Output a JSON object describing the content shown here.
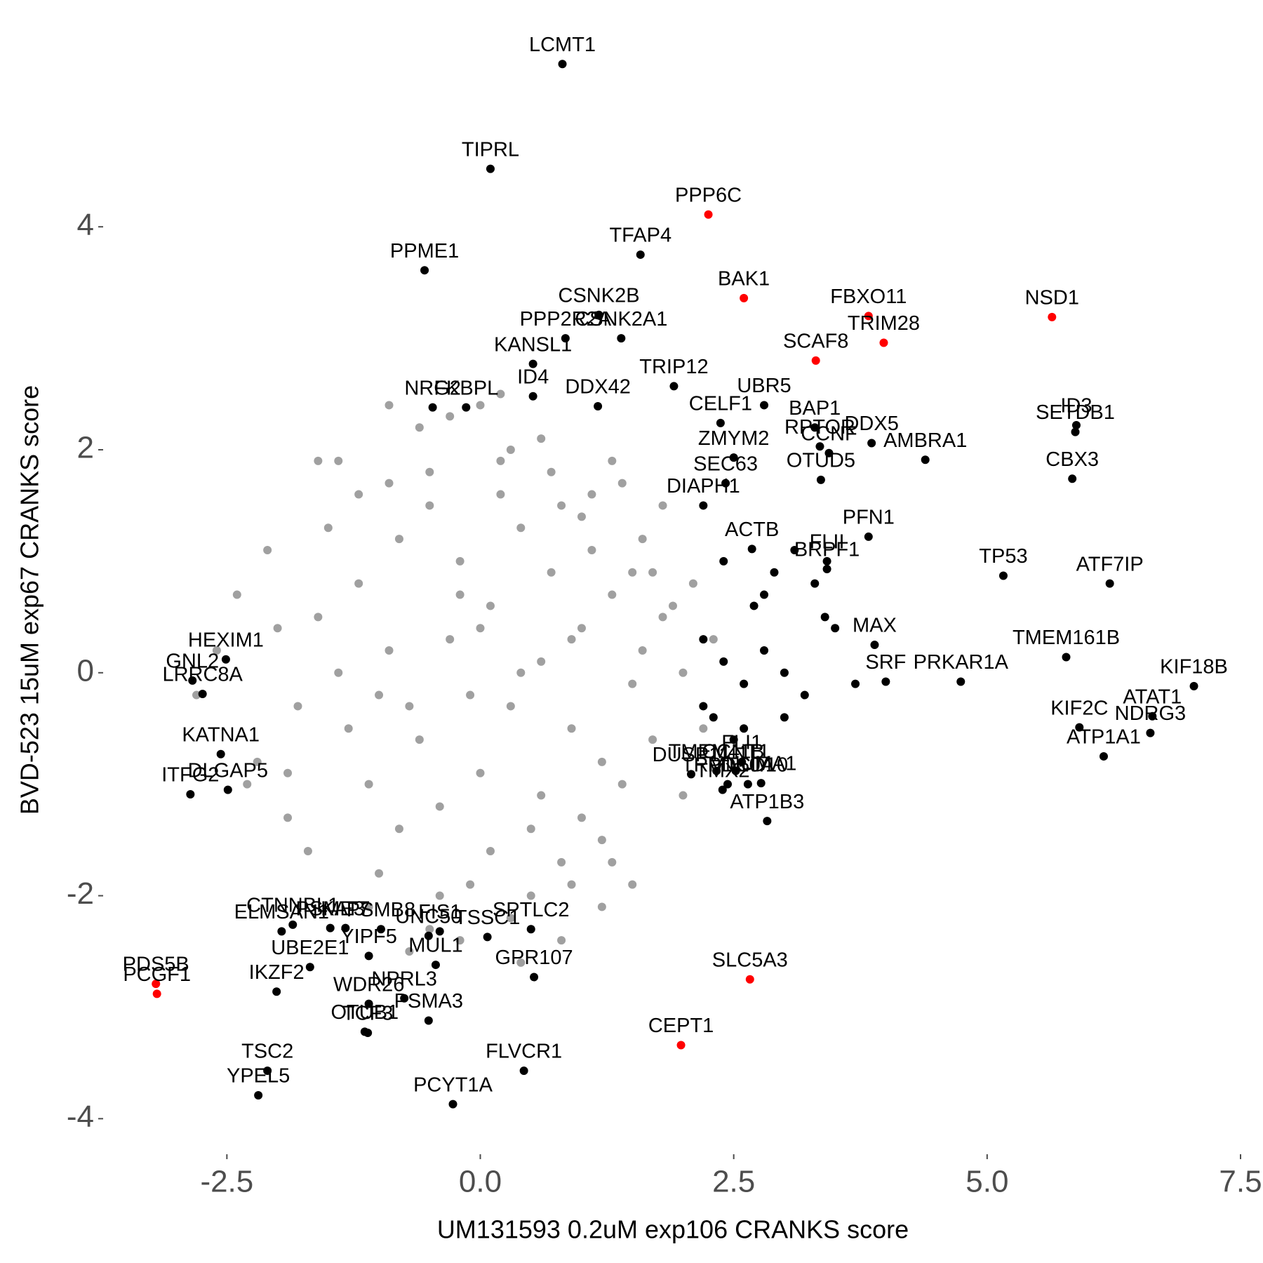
{
  "chart_data": {
    "type": "scatter",
    "xlabel": "UM131593 0.2uM exp106 CRANKS score",
    "ylabel": "BVD-523 15uM exp67 CRANKS score",
    "xlim": [
      -3.7,
      7.5
    ],
    "ylim": [
      -4.3,
      5.6
    ],
    "xticks": [
      -2.5,
      {
        "value": 0,
        "label": "0.0"
      },
      2.5,
      {
        "value": 5,
        "label": "5.0"
      },
      7.5
    ],
    "yticks": [
      -4,
      -2,
      0,
      2,
      4
    ],
    "series": [
      {
        "color": "#a0a0a0",
        "x": [
          -1.2,
          -0.8,
          -0.5,
          -0.2,
          0.1,
          0.4,
          0.7,
          1.0,
          1.3,
          1.6,
          -1.0,
          -0.6,
          -0.3,
          0.0,
          0.3,
          0.6,
          0.9,
          1.2,
          1.5,
          1.8,
          -1.4,
          -0.9,
          -0.4,
          0.2,
          0.5,
          0.8,
          1.1,
          1.4,
          -0.7,
          0.0,
          -1.1,
          -0.5,
          0.1,
          0.6,
          1.0,
          1.5,
          -0.2,
          0.4,
          0.9,
          -0.8,
          -1.6,
          -1.3,
          -0.9,
          -0.1,
          0.3,
          0.8,
          1.2,
          1.7,
          2.0,
          2.1,
          -1.8,
          -2.0,
          -2.2,
          -2.4,
          -1.9,
          -1.5,
          -1.0,
          -0.4,
          0.2,
          0.7,
          1.1,
          1.6,
          2.0,
          -0.6,
          -0.1,
          0.5,
          1.3,
          -1.2,
          -0.3,
          0.9,
          -2.1,
          -1.7,
          -2.6,
          -2.3,
          1.9,
          2.2,
          1.4,
          -0.5,
          0.6,
          1.0,
          -1.4,
          0.3,
          -0.9,
          1.7,
          -2.8,
          2.3,
          0.2,
          -1.6,
          1.2,
          -0.2,
          0.5,
          1.8,
          -1.1,
          0.0,
          -0.7,
          0.8,
          1.5,
          -1.9,
          0.4,
          1.3
        ],
        "y": [
          0.8,
          1.2,
          1.5,
          1.0,
          0.6,
          1.3,
          0.9,
          0.4,
          0.7,
          0.2,
          -0.2,
          -0.6,
          0.3,
          -0.9,
          -0.3,
          0.1,
          -0.5,
          -0.8,
          -0.1,
          0.5,
          0.0,
          0.2,
          -1.2,
          1.6,
          -1.4,
          1.5,
          1.1,
          -1.0,
          -0.3,
          0.4,
          -1.0,
          1.8,
          -1.6,
          -1.1,
          -1.3,
          0.9,
          0.7,
          0.0,
          0.3,
          -1.4,
          0.5,
          -0.5,
          1.7,
          -0.2,
          2.0,
          -1.7,
          -1.5,
          -0.6,
          0.0,
          0.8,
          -0.3,
          0.4,
          -0.8,
          0.7,
          -1.3,
          1.3,
          -1.8,
          -2.0,
          1.9,
          1.8,
          1.6,
          1.2,
          -1.1,
          2.2,
          -1.9,
          -2.0,
          -1.7,
          1.6,
          2.3,
          -1.9,
          1.1,
          -1.6,
          0.2,
          -1.0,
          0.6,
          -0.5,
          1.7,
          -2.3,
          2.1,
          1.4,
          1.9,
          -2.2,
          2.4,
          0.9,
          -0.2,
          0.3,
          2.5,
          1.9,
          -2.1,
          -2.4,
          -2.3,
          1.5,
          -2.1,
          2.4,
          -2.5,
          -2.4,
          -1.9,
          -0.9,
          -2.6,
          1.9
        ]
      },
      {
        "color": "#000000",
        "x": [
          2.2,
          2.4,
          2.6,
          2.8,
          3.0,
          3.2,
          3.4,
          2.3,
          2.5,
          2.7,
          2.9,
          3.1,
          3.5,
          3.7,
          2.2,
          2.6,
          3.0,
          3.3,
          2.4,
          2.8
        ],
        "y": [
          0.3,
          0.1,
          -0.1,
          0.2,
          0.0,
          -0.2,
          0.5,
          -0.4,
          -0.6,
          0.6,
          0.9,
          1.1,
          0.4,
          -0.1,
          -0.3,
          -0.5,
          -0.4,
          0.8,
          1.0,
          0.7
        ]
      }
    ],
    "points": [
      {
        "label": "LCMT1",
        "x": 0.81,
        "y": 5.46,
        "color": "#000000"
      },
      {
        "label": "TIPRL",
        "x": 0.1,
        "y": 4.52,
        "color": "#000000"
      },
      {
        "label": "PPP6C",
        "x": 2.25,
        "y": 4.11,
        "color": "#ff0000"
      },
      {
        "label": "TFAP4",
        "x": 1.58,
        "y": 3.75,
        "color": "#000000"
      },
      {
        "label": "PPME1",
        "x": -0.55,
        "y": 3.61,
        "color": "#000000"
      },
      {
        "label": "BAK1",
        "x": 2.6,
        "y": 3.36,
        "color": "#ff0000"
      },
      {
        "label": "CSNK2B",
        "x": 1.17,
        "y": 3.21,
        "color": "#000000"
      },
      {
        "label": "FBXO11",
        "x": 3.83,
        "y": 3.2,
        "color": "#ff0000"
      },
      {
        "label": "NSD1",
        "x": 5.64,
        "y": 3.19,
        "color": "#ff0000"
      },
      {
        "label": "PPP2R2A",
        "x": 0.84,
        "y": 3.0,
        "color": "#000000"
      },
      {
        "label": "CSNK2A1",
        "x": 1.39,
        "y": 3.0,
        "color": "#000000"
      },
      {
        "label": "TRIM28",
        "x": 3.98,
        "y": 2.96,
        "color": "#ff0000"
      },
      {
        "label": "SCAF8",
        "x": 3.31,
        "y": 2.8,
        "color": "#ff0000"
      },
      {
        "label": "KANSL1",
        "x": 0.52,
        "y": 2.77,
        "color": "#000000"
      },
      {
        "label": "TRIP12",
        "x": 1.91,
        "y": 2.57,
        "color": "#000000"
      },
      {
        "label": "ID4",
        "x": 0.52,
        "y": 2.48,
        "color": "#000000"
      },
      {
        "label": "UBR5",
        "x": 2.8,
        "y": 2.4,
        "color": "#000000"
      },
      {
        "label": "NRG2",
        "x": -0.47,
        "y": 2.38,
        "color": "#000000"
      },
      {
        "label": "FKBPL",
        "x": -0.14,
        "y": 2.38,
        "color": "#000000"
      },
      {
        "label": "DDX42",
        "x": 1.16,
        "y": 2.39,
        "color": "#000000"
      },
      {
        "label": "CELF1",
        "x": 2.37,
        "y": 2.24,
        "color": "#000000"
      },
      {
        "label": "BAP1",
        "x": 3.3,
        "y": 2.2,
        "color": "#000000"
      },
      {
        "label": "ID3",
        "x": 5.88,
        "y": 2.22,
        "color": "#000000"
      },
      {
        "label": "SETDB1",
        "x": 5.87,
        "y": 2.16,
        "color": "#000000"
      },
      {
        "label": "DDX5",
        "x": 3.86,
        "y": 2.06,
        "color": "#000000"
      },
      {
        "label": "RPTOR",
        "x": 3.35,
        "y": 2.03,
        "color": "#000000"
      },
      {
        "label": "CCNF",
        "x": 3.44,
        "y": 1.97,
        "color": "#000000"
      },
      {
        "label": "AMBRA1",
        "x": 4.39,
        "y": 1.91,
        "color": "#000000"
      },
      {
        "label": "ZMYM2",
        "x": 2.5,
        "y": 1.93,
        "color": "#000000"
      },
      {
        "label": "CBX3",
        "x": 5.84,
        "y": 1.74,
        "color": "#000000"
      },
      {
        "label": "OTUD5",
        "x": 3.36,
        "y": 1.73,
        "color": "#000000"
      },
      {
        "label": "SEC63",
        "x": 2.42,
        "y": 1.7,
        "color": "#000000"
      },
      {
        "label": "DIAPH1",
        "x": 2.2,
        "y": 1.5,
        "color": "#000000"
      },
      {
        "label": "PFN1",
        "x": 3.83,
        "y": 1.22,
        "color": "#000000"
      },
      {
        "label": "ACTB",
        "x": 2.68,
        "y": 1.11,
        "color": "#000000"
      },
      {
        "label": "FLII",
        "x": 3.42,
        "y": 1.0,
        "color": "#000000"
      },
      {
        "label": "BRPF1",
        "x": 3.42,
        "y": 0.93,
        "color": "#000000"
      },
      {
        "label": "TP53",
        "x": 5.16,
        "y": 0.87,
        "color": "#000000"
      },
      {
        "label": "ATF7IP",
        "x": 6.21,
        "y": 0.8,
        "color": "#000000"
      },
      {
        "label": "MAX",
        "x": 3.89,
        "y": 0.25,
        "color": "#000000"
      },
      {
        "label": "TMEM161B",
        "x": 5.78,
        "y": 0.14,
        "color": "#000000"
      },
      {
        "label": "KIF18B",
        "x": 7.04,
        "y": -0.12,
        "color": "#000000"
      },
      {
        "label": "PRKAR1A",
        "x": 4.74,
        "y": -0.08,
        "color": "#000000"
      },
      {
        "label": "SRF",
        "x": 4.0,
        "y": -0.08,
        "color": "#000000"
      },
      {
        "label": "ATAT1",
        "x": 6.63,
        "y": -0.39,
        "color": "#000000"
      },
      {
        "label": "KIF2C",
        "x": 5.91,
        "y": -0.49,
        "color": "#000000"
      },
      {
        "label": "NDRG3",
        "x": 6.61,
        "y": -0.54,
        "color": "#000000"
      },
      {
        "label": "ATP1A1",
        "x": 6.15,
        "y": -0.75,
        "color": "#000000"
      },
      {
        "label": "HEXIM1",
        "x": -2.51,
        "y": 0.12,
        "color": "#000000"
      },
      {
        "label": "GNL2",
        "x": -2.84,
        "y": -0.07,
        "color": "#000000"
      },
      {
        "label": "LRRC8A",
        "x": -2.74,
        "y": -0.19,
        "color": "#000000"
      },
      {
        "label": "KATNA1",
        "x": -2.56,
        "y": -0.73,
        "color": "#000000"
      },
      {
        "label": "DLGAP5",
        "x": -2.49,
        "y": -1.05,
        "color": "#000000"
      },
      {
        "label": "ITFG2",
        "x": -2.86,
        "y": -1.09,
        "color": "#000000"
      },
      {
        "label": "TMEM41B",
        "x": 2.33,
        "y": -0.88,
        "color": "#000000"
      },
      {
        "label": "FLI1",
        "x": 2.58,
        "y": -0.8,
        "color": "#000000"
      },
      {
        "label": "CCNT1",
        "x": 2.52,
        "y": -0.88,
        "color": "#000000"
      },
      {
        "label": "DUSP11",
        "x": 2.08,
        "y": -0.91,
        "color": "#000000"
      },
      {
        "label": "TRMT10A",
        "x": 2.44,
        "y": -1.0,
        "color": "#000000"
      },
      {
        "label": "PDCD10",
        "x": 2.64,
        "y": -1.0,
        "color": "#000000"
      },
      {
        "label": "NUMA1",
        "x": 2.77,
        "y": -0.99,
        "color": "#000000"
      },
      {
        "label": "TMX2",
        "x": 2.39,
        "y": -1.05,
        "color": "#000000"
      },
      {
        "label": "ATP1B3",
        "x": 2.83,
        "y": -1.33,
        "color": "#000000"
      },
      {
        "label": "PSME3",
        "x": -1.48,
        "y": -2.29,
        "color": "#000000"
      },
      {
        "label": "PSMB8",
        "x": -0.98,
        "y": -2.3,
        "color": "#000000"
      },
      {
        "label": "UNC50",
        "x": -0.51,
        "y": -2.36,
        "color": "#000000"
      },
      {
        "label": "CTNNBL1",
        "x": -1.85,
        "y": -2.26,
        "color": "#000000"
      },
      {
        "label": "ELMSAN1",
        "x": -1.96,
        "y": -2.32,
        "color": "#000000"
      },
      {
        "label": "KAT7",
        "x": -1.33,
        "y": -2.29,
        "color": "#000000"
      },
      {
        "label": "FIS1",
        "x": -0.4,
        "y": -2.32,
        "color": "#000000"
      },
      {
        "label": "SPTLC2",
        "x": 0.5,
        "y": -2.3,
        "color": "#000000"
      },
      {
        "label": "TSSC1",
        "x": 0.07,
        "y": -2.37,
        "color": "#000000"
      },
      {
        "label": "UBE2E1",
        "x": -1.68,
        "y": -2.64,
        "color": "#000000"
      },
      {
        "label": "YIPF5",
        "x": -1.1,
        "y": -2.54,
        "color": "#000000"
      },
      {
        "label": "MUL1",
        "x": -0.44,
        "y": -2.62,
        "color": "#000000"
      },
      {
        "label": "GPR107",
        "x": 0.53,
        "y": -2.73,
        "color": "#000000"
      },
      {
        "label": "SLC5A3",
        "x": 2.66,
        "y": -2.75,
        "color": "#ff0000"
      },
      {
        "label": "PDS5B",
        "x": -3.2,
        "y": -2.79,
        "color": "#ff0000"
      },
      {
        "label": "PCGF1",
        "x": -3.19,
        "y": -2.88,
        "color": "#ff0000"
      },
      {
        "label": "IKZF2",
        "x": -2.01,
        "y": -2.86,
        "color": "#000000"
      },
      {
        "label": "WDR26",
        "x": -1.1,
        "y": -2.97,
        "color": "#000000"
      },
      {
        "label": "NPRL3",
        "x": -0.75,
        "y": -2.92,
        "color": "#000000"
      },
      {
        "label": "CEPT1",
        "x": 1.98,
        "y": -3.34,
        "color": "#ff0000"
      },
      {
        "label": "TCF3",
        "x": -1.11,
        "y": -3.23,
        "color": "#000000"
      },
      {
        "label": "OTUB1",
        "x": -1.14,
        "y": -3.22,
        "color": "#000000"
      },
      {
        "label": "PSMA3",
        "x": -0.51,
        "y": -3.12,
        "color": "#000000"
      },
      {
        "label": "TSC2",
        "x": -2.1,
        "y": -3.57,
        "color": "#000000"
      },
      {
        "label": "FLVCR1",
        "x": 0.43,
        "y": -3.57,
        "color": "#000000"
      },
      {
        "label": "YPEL5",
        "x": -2.19,
        "y": -3.79,
        "color": "#000000"
      },
      {
        "label": "PCYT1A",
        "x": -0.27,
        "y": -3.87,
        "color": "#000000"
      }
    ]
  }
}
